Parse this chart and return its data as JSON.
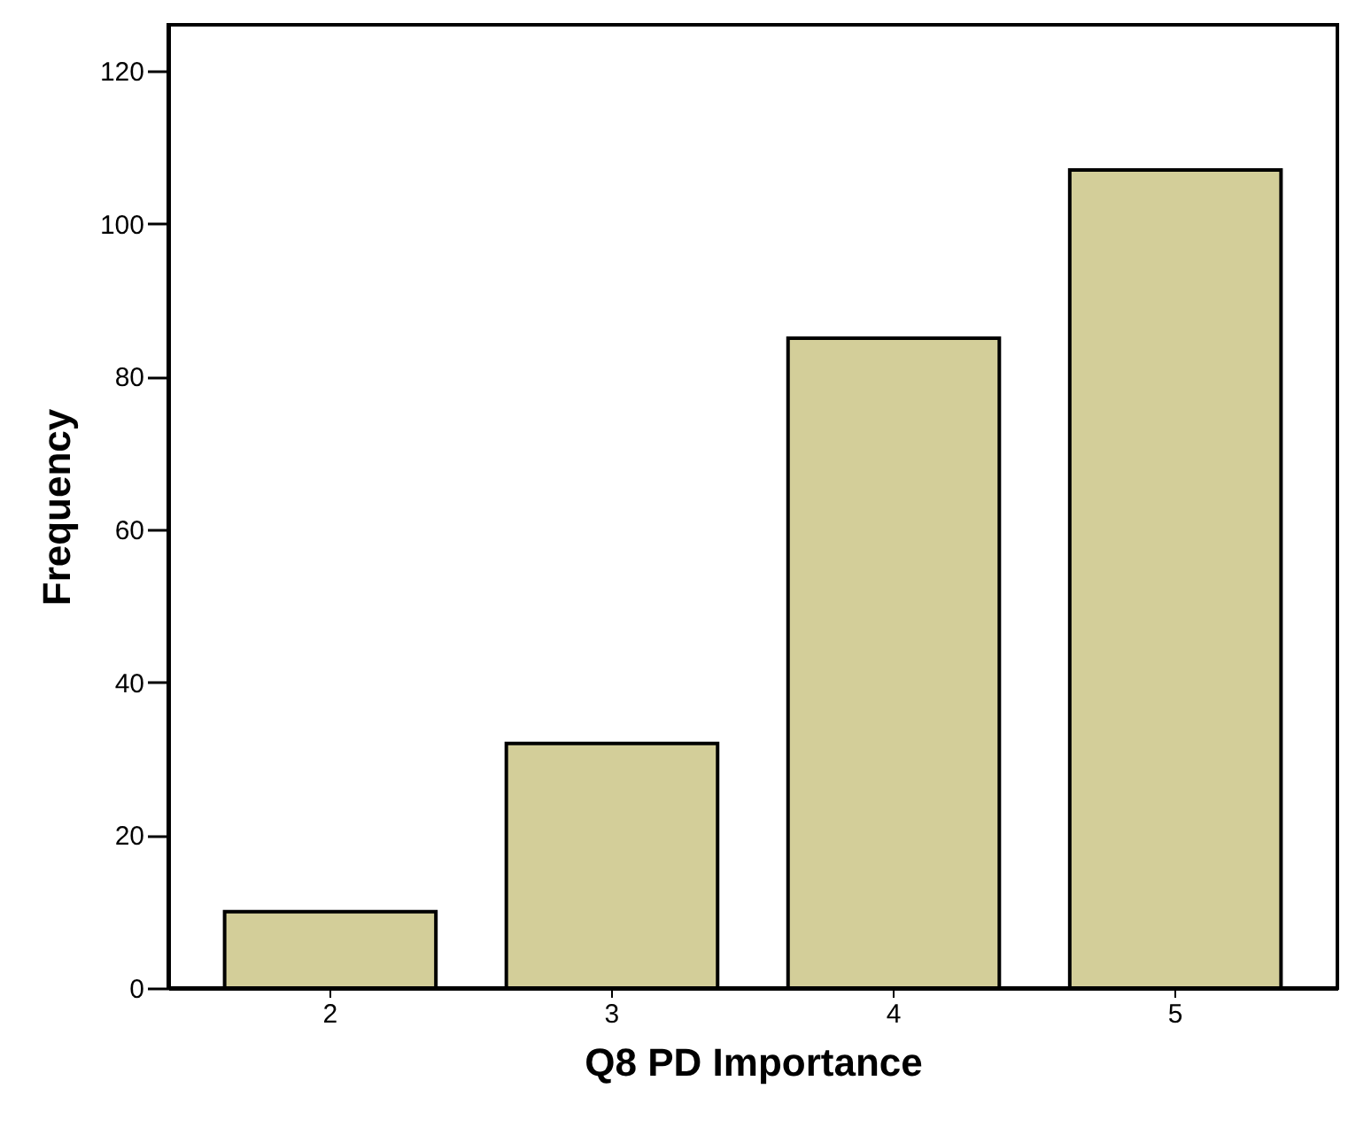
{
  "chart_data": {
    "type": "bar",
    "xlabel": "Q8 PD Importance",
    "ylabel": "Frequency",
    "categories": [
      "2",
      "3",
      "4",
      "5"
    ],
    "values": [
      10,
      32,
      85,
      107
    ],
    "color": "#d3ce99",
    "ylim": [
      0,
      126
    ],
    "yticks": [
      0,
      20,
      40,
      60,
      80,
      100,
      120
    ],
    "grid": false
  }
}
